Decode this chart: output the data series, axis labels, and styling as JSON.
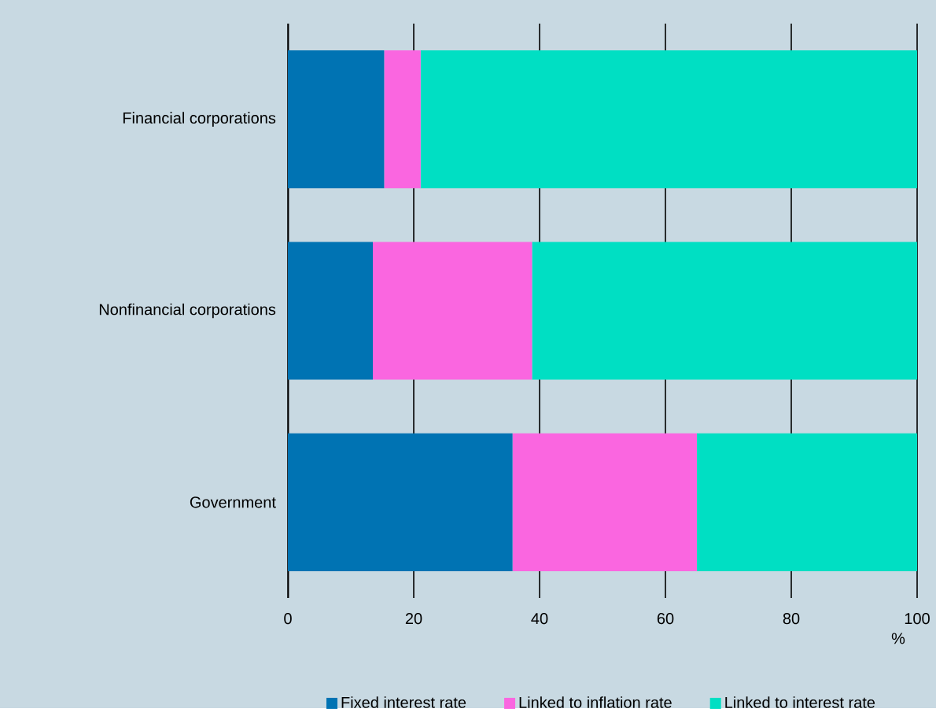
{
  "chart_data": {
    "type": "bar",
    "orientation": "horizontal",
    "stacked": true,
    "categories": [
      "Financial corporations",
      "Nonfinancial corporations",
      "Government"
    ],
    "series": [
      {
        "name": "Fixed interest rate",
        "color": "#0073b3",
        "values": [
          15.3,
          13.5,
          35.7
        ]
      },
      {
        "name": "Linked to inflation rate",
        "color": "#fa66e0",
        "values": [
          5.8,
          25.3,
          29.3
        ]
      },
      {
        "name": "Linked to interest rate",
        "color": "#00dfc3",
        "values": [
          78.9,
          61.2,
          35.0
        ]
      }
    ],
    "xlabel": "%",
    "xlim": [
      0,
      100
    ],
    "xticks": [
      0,
      20,
      40,
      60,
      80,
      100
    ],
    "grid": "x",
    "legend": "bottom"
  }
}
